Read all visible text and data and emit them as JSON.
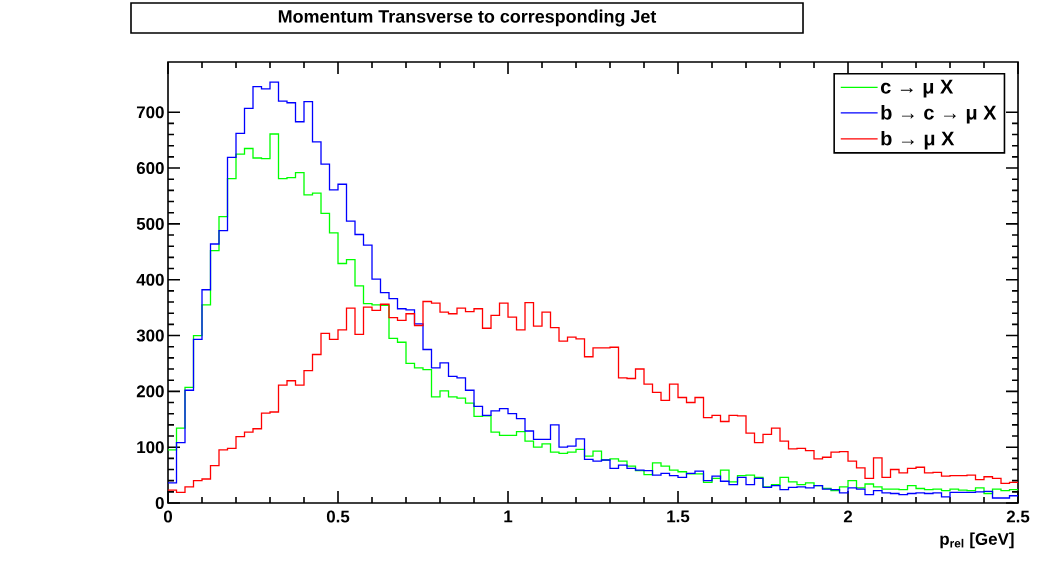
{
  "chart_data": {
    "type": "histogram",
    "title": "Momentum Transverse to corresponding Jet",
    "xlabel": "p$_{rel}$ [GeV]",
    "bins": [
      0,
      0.025,
      0.05,
      0.075,
      0.1,
      0.125,
      0.15,
      0.175,
      0.2,
      0.225,
      0.25,
      0.275,
      0.3,
      0.325,
      0.35,
      0.375,
      0.4,
      0.425,
      0.45,
      0.475,
      0.5,
      0.525,
      0.55,
      0.575,
      0.6,
      0.625,
      0.65,
      0.675,
      0.7,
      0.725,
      0.75,
      0.775,
      0.8,
      0.825,
      0.85,
      0.875,
      0.9,
      0.925,
      0.95,
      0.975,
      1,
      1.025,
      1.05,
      1.075,
      1.1,
      1.125,
      1.15,
      1.175,
      1.2,
      1.225,
      1.25,
      1.275,
      1.3,
      1.325,
      1.35,
      1.375,
      1.4,
      1.425,
      1.45,
      1.475,
      1.5,
      1.525,
      1.55,
      1.575,
      1.6,
      1.625,
      1.65,
      1.675,
      1.7,
      1.725,
      1.75,
      1.775,
      1.8,
      1.825,
      1.85,
      1.875,
      1.9,
      1.925,
      1.95,
      1.975,
      2,
      2.025,
      2.05,
      2.075,
      2.1,
      2.125,
      2.15,
      2.175,
      2.2,
      2.225,
      2.25,
      2.275,
      2.3,
      2.325,
      2.35,
      2.375,
      2.4,
      2.425,
      2.45,
      2.475,
      2.5
    ],
    "series": [
      {
        "name": "c → μ X",
        "color": "#00ff00",
        "values": [
          95,
          134,
          207,
          300,
          355,
          452,
          513,
          581,
          625,
          635,
          618,
          617,
          661,
          581,
          583,
          592,
          552,
          555,
          519,
          484,
          429,
          436,
          389,
          357,
          355,
          354,
          295,
          288,
          250,
          242,
          239,
          190,
          201,
          190,
          188,
          179,
          155,
          156,
          127,
          121,
          121,
          128,
          111,
          100,
          106,
          91,
          89,
          91,
          96,
          84,
          93,
          77,
          79,
          75,
          66,
          58,
          51,
          72,
          66,
          59,
          56,
          52,
          52,
          37,
          44,
          59,
          38,
          49,
          50,
          46,
          29,
          33,
          46,
          38,
          33,
          36,
          31,
          26,
          22,
          29,
          40,
          27,
          34,
          29,
          25,
          25,
          24,
          31,
          26,
          24,
          25,
          22,
          25,
          23,
          22,
          27,
          17,
          25,
          22,
          24
        ]
      },
      {
        "name": "b → c → μ X",
        "color": "#0000ff",
        "values": [
          36,
          108,
          202,
          293,
          382,
          464,
          488,
          619,
          662,
          707,
          746,
          742,
          754,
          720,
          717,
          683,
          719,
          647,
          607,
          561,
          571,
          505,
          481,
          462,
          401,
          377,
          366,
          348,
          346,
          321,
          275,
          242,
          251,
          227,
          224,
          202,
          173,
          157,
          165,
          169,
          160,
          151,
          129,
          114,
          114,
          140,
          100,
          102,
          115,
          78,
          75,
          77,
          62,
          68,
          62,
          59,
          58,
          50,
          53,
          49,
          46,
          53,
          57,
          40,
          48,
          39,
          33,
          46,
          33,
          44,
          28,
          31,
          24,
          28,
          29,
          27,
          31,
          25,
          24,
          18,
          27,
          25,
          15,
          22,
          18,
          17,
          15,
          17,
          18,
          17,
          18,
          11,
          19,
          19,
          19,
          20,
          21,
          9,
          9,
          13
        ]
      },
      {
        "name": "b → μ X",
        "color": "#ff0000",
        "values": [
          23,
          19,
          29,
          40,
          43,
          67,
          95,
          98,
          119,
          127,
          133,
          161,
          163,
          211,
          219,
          211,
          237,
          266,
          304,
          293,
          310,
          349,
          302,
          351,
          345,
          356,
          332,
          327,
          339,
          318,
          361,
          358,
          342,
          339,
          349,
          343,
          348,
          313,
          336,
          358,
          333,
          310,
          359,
          317,
          342,
          314,
          290,
          297,
          294,
          262,
          278,
          278,
          279,
          224,
          223,
          240,
          213,
          198,
          184,
          213,
          189,
          180,
          189,
          153,
          157,
          146,
          157,
          156,
          125,
          108,
          123,
          134,
          111,
          97,
          98,
          94,
          79,
          82,
          91,
          92,
          75,
          63,
          44,
          81,
          46,
          60,
          54,
          62,
          64,
          54,
          55,
          48,
          49,
          49,
          50,
          42,
          47,
          44,
          35,
          37
        ]
      }
    ],
    "xlim": [
      0,
      2.5
    ],
    "ylim": [
      0,
      790
    ],
    "xticks": [
      0,
      0.5,
      1,
      1.5,
      2,
      2.5
    ],
    "yticks": [
      0,
      100,
      200,
      300,
      400,
      500,
      600,
      700
    ],
    "legend": "top right"
  }
}
